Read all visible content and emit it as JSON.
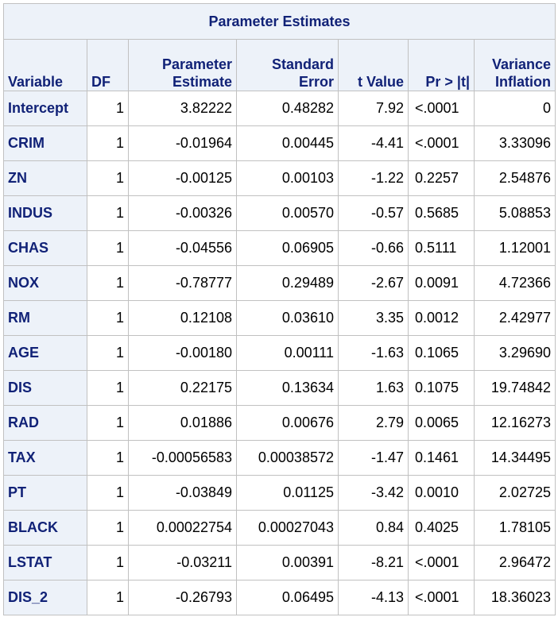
{
  "table": {
    "title": "Parameter Estimates",
    "headers": {
      "variable": "Variable",
      "df": "DF",
      "estimate_line1": "Parameter",
      "estimate_line2": "Estimate",
      "stderr_line1": "Standard",
      "stderr_line2": "Error",
      "tvalue": "t Value",
      "pvalue": "Pr > |t|",
      "vif_line1": "Variance",
      "vif_line2": "Inflation"
    },
    "rows": [
      {
        "variable": "Intercept",
        "df": "1",
        "estimate": "3.82222",
        "stderr": "0.48282",
        "tvalue": "7.92",
        "pvalue": "<.0001",
        "vif": "0"
      },
      {
        "variable": "CRIM",
        "df": "1",
        "estimate": "-0.01964",
        "stderr": "0.00445",
        "tvalue": "-4.41",
        "pvalue": "<.0001",
        "vif": "3.33096"
      },
      {
        "variable": "ZN",
        "df": "1",
        "estimate": "-0.00125",
        "stderr": "0.00103",
        "tvalue": "-1.22",
        "pvalue": "0.2257",
        "vif": "2.54876"
      },
      {
        "variable": "INDUS",
        "df": "1",
        "estimate": "-0.00326",
        "stderr": "0.00570",
        "tvalue": "-0.57",
        "pvalue": "0.5685",
        "vif": "5.08853"
      },
      {
        "variable": "CHAS",
        "df": "1",
        "estimate": "-0.04556",
        "stderr": "0.06905",
        "tvalue": "-0.66",
        "pvalue": "0.5111",
        "vif": "1.12001"
      },
      {
        "variable": "NOX",
        "df": "1",
        "estimate": "-0.78777",
        "stderr": "0.29489",
        "tvalue": "-2.67",
        "pvalue": "0.0091",
        "vif": "4.72366"
      },
      {
        "variable": "RM",
        "df": "1",
        "estimate": "0.12108",
        "stderr": "0.03610",
        "tvalue": "3.35",
        "pvalue": "0.0012",
        "vif": "2.42977"
      },
      {
        "variable": "AGE",
        "df": "1",
        "estimate": "-0.00180",
        "stderr": "0.00111",
        "tvalue": "-1.63",
        "pvalue": "0.1065",
        "vif": "3.29690"
      },
      {
        "variable": "DIS",
        "df": "1",
        "estimate": "0.22175",
        "stderr": "0.13634",
        "tvalue": "1.63",
        "pvalue": "0.1075",
        "vif": "19.74842"
      },
      {
        "variable": "RAD",
        "df": "1",
        "estimate": "0.01886",
        "stderr": "0.00676",
        "tvalue": "2.79",
        "pvalue": "0.0065",
        "vif": "12.16273"
      },
      {
        "variable": "TAX",
        "df": "1",
        "estimate": "-0.00056583",
        "stderr": "0.00038572",
        "tvalue": "-1.47",
        "pvalue": "0.1461",
        "vif": "14.34495"
      },
      {
        "variable": "PT",
        "df": "1",
        "estimate": "-0.03849",
        "stderr": "0.01125",
        "tvalue": "-3.42",
        "pvalue": "0.0010",
        "vif": "2.02725"
      },
      {
        "variable": "BLACK",
        "df": "1",
        "estimate": "0.00022754",
        "stderr": "0.00027043",
        "tvalue": "0.84",
        "pvalue": "0.4025",
        "vif": "1.78105"
      },
      {
        "variable": "LSTAT",
        "df": "1",
        "estimate": "-0.03211",
        "stderr": "0.00391",
        "tvalue": "-8.21",
        "pvalue": "<.0001",
        "vif": "2.96472"
      },
      {
        "variable": "DIS_2",
        "df": "1",
        "estimate": "-0.26793",
        "stderr": "0.06495",
        "tvalue": "-4.13",
        "pvalue": "<.0001",
        "vif": "18.36023"
      }
    ]
  },
  "colors": {
    "header_bg": "#edf2f9",
    "header_text": "#112277",
    "border": "#c1c1c1"
  }
}
